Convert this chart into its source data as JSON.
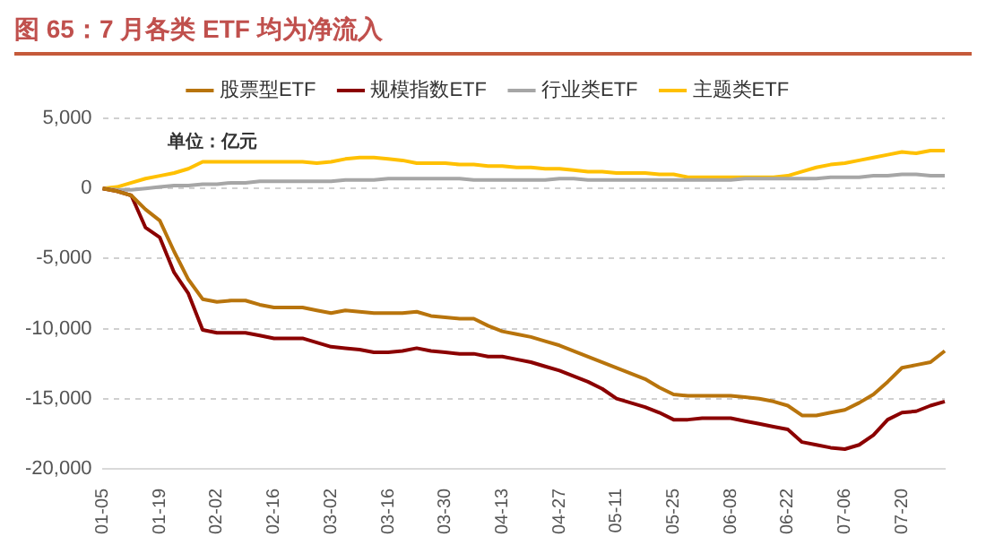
{
  "chart_data": {
    "type": "line",
    "title": "图 65：7 月各类 ETF 均为净流入",
    "annotations": [
      "单位：亿元"
    ],
    "categories": [
      "01-05",
      null,
      null,
      null,
      "01-19",
      null,
      null,
      null,
      "02-02",
      null,
      null,
      null,
      "02-16",
      null,
      null,
      null,
      "03-02",
      null,
      null,
      null,
      "03-16",
      null,
      null,
      null,
      "03-30",
      null,
      null,
      null,
      "04-13",
      null,
      null,
      null,
      "04-27",
      null,
      null,
      null,
      "05-11",
      null,
      null,
      null,
      "05-25",
      null,
      null,
      null,
      "06-08",
      null,
      null,
      null,
      "06-22",
      null,
      null,
      null,
      "07-06",
      null,
      null,
      null,
      "07-20",
      null,
      null,
      null
    ],
    "series": [
      {
        "name": "股票型ETF",
        "color": "#b8740c",
        "values": [
          0,
          -200,
          -500,
          -1500,
          -2300,
          -4500,
          -6500,
          -7900,
          -8100,
          -8000,
          -8000,
          -8300,
          -8500,
          -8500,
          -8500,
          -8700,
          -8900,
          -8700,
          -8800,
          -8900,
          -8900,
          -8900,
          -8800,
          -9100,
          -9200,
          -9300,
          -9300,
          -9800,
          -10200,
          -10400,
          -10600,
          -10900,
          -11200,
          -11600,
          -12000,
          -12400,
          -12800,
          -13200,
          -13600,
          -14200,
          -14700,
          -14800,
          -14800,
          -14800,
          -14800,
          -14900,
          -15000,
          -15200,
          -15500,
          -16200,
          -16200,
          -16000,
          -15800,
          -15300,
          -14700,
          -13800,
          -12800,
          -12600,
          -12400,
          -11600
        ]
      },
      {
        "name": "规模指数ETF",
        "color": "#8b0000",
        "values": [
          0,
          -200,
          -500,
          -2800,
          -3500,
          -6000,
          -7500,
          -10100,
          -10300,
          -10300,
          -10300,
          -10500,
          -10700,
          -10700,
          -10700,
          -11000,
          -11300,
          -11400,
          -11500,
          -11700,
          -11700,
          -11600,
          -11400,
          -11600,
          -11700,
          -11800,
          -11800,
          -12000,
          -12000,
          -12200,
          -12400,
          -12700,
          -13000,
          -13400,
          -13800,
          -14300,
          -15000,
          -15300,
          -15600,
          -16000,
          -16500,
          -16500,
          -16400,
          -16400,
          -16400,
          -16600,
          -16800,
          -17000,
          -17200,
          -18100,
          -18300,
          -18500,
          -18600,
          -18300,
          -17600,
          -16500,
          -16000,
          -15900,
          -15500,
          -15200
        ]
      },
      {
        "name": "行业类ETF",
        "color": "#a6a6a6",
        "values": [
          0,
          -100,
          -100,
          0,
          100,
          200,
          200,
          300,
          300,
          400,
          400,
          500,
          500,
          500,
          500,
          500,
          500,
          600,
          600,
          600,
          700,
          700,
          700,
          700,
          700,
          700,
          600,
          600,
          600,
          600,
          600,
          600,
          700,
          700,
          600,
          600,
          600,
          600,
          600,
          600,
          600,
          600,
          600,
          600,
          600,
          700,
          700,
          700,
          700,
          700,
          700,
          800,
          800,
          800,
          900,
          900,
          1000,
          1000,
          900,
          900
        ]
      },
      {
        "name": "主题类ETF",
        "color": "#ffc000",
        "values": [
          0,
          100,
          400,
          700,
          900,
          1100,
          1400,
          1900,
          1900,
          1900,
          1900,
          1900,
          1900,
          1900,
          1900,
          1800,
          1900,
          2100,
          2200,
          2200,
          2100,
          2000,
          1800,
          1800,
          1800,
          1700,
          1700,
          1600,
          1600,
          1500,
          1500,
          1400,
          1400,
          1300,
          1200,
          1200,
          1100,
          1100,
          1100,
          1000,
          1000,
          800,
          800,
          800,
          800,
          800,
          800,
          800,
          900,
          1200,
          1500,
          1700,
          1800,
          2000,
          2200,
          2400,
          2600,
          2500,
          2700,
          2700
        ]
      }
    ],
    "ylim": [
      -20000,
      5000
    ],
    "yticks": [
      {
        "value": -20000,
        "label": "-20,000"
      },
      {
        "value": -15000,
        "label": "-15,000"
      },
      {
        "value": -10000,
        "label": "-10,000"
      },
      {
        "value": -5000,
        "label": "-5,000"
      },
      0,
      {
        "value": 5000,
        "label": "5,000"
      }
    ],
    "grid": "y",
    "legend": "top",
    "marker": "none",
    "line_style": "solid"
  }
}
